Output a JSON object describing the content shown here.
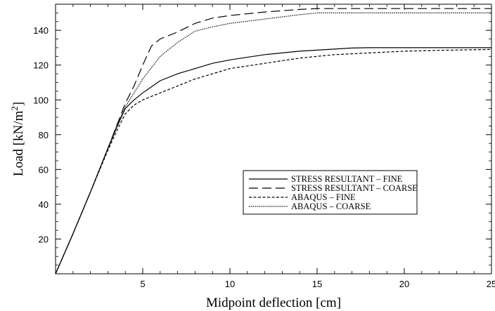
{
  "chart_data": {
    "type": "line",
    "xlabel": "Midpoint deflection [cm]",
    "ylabel_main": "Load [kN/m",
    "ylabel_sup": "2",
    "ylabel_end": "]",
    "xlim": [
      0,
      25
    ],
    "ylim": [
      0,
      155
    ],
    "xticks": [
      5,
      10,
      15,
      20,
      25
    ],
    "yticks": [
      20,
      40,
      60,
      80,
      100,
      120,
      140
    ],
    "grid": false,
    "legend_position": "center-right",
    "series": [
      {
        "name": "STRESS RESULTANT – FINE",
        "style": "solid",
        "x": [
          0,
          1,
          2,
          3,
          3.5,
          4,
          4.5,
          5,
          6,
          7,
          8,
          9,
          10,
          12,
          14,
          16,
          17,
          18,
          20,
          22,
          25
        ],
        "y": [
          0,
          23,
          47,
          72,
          84,
          95,
          100,
          104,
          111,
          115,
          118,
          121,
          123,
          126,
          128,
          129.2,
          129.8,
          130,
          130,
          130,
          130
        ]
      },
      {
        "name": "STRESS RESULTANT – COARSE",
        "style": "dashed",
        "x": [
          0,
          1,
          2,
          3,
          3.5,
          4,
          4.5,
          5,
          5.5,
          6,
          7,
          8,
          9,
          10,
          12,
          14,
          15,
          17,
          20,
          25
        ],
        "y": [
          0,
          23,
          47,
          72,
          85,
          98,
          108,
          120,
          131,
          135,
          139,
          144,
          147,
          148.5,
          150.5,
          152,
          152.5,
          152.5,
          152.5,
          152.5
        ]
      },
      {
        "name": "ABAQUS – FINE",
        "style": "short-dashed",
        "x": [
          0,
          1,
          2,
          3,
          3.5,
          4,
          4.5,
          5,
          6,
          7,
          8,
          9,
          10,
          12,
          14,
          16,
          18,
          20,
          22,
          25
        ],
        "y": [
          0,
          23,
          47,
          71,
          82,
          92,
          97,
          100,
          104,
          108,
          112,
          115,
          118,
          121,
          124,
          126,
          127,
          128,
          128.5,
          129
        ]
      },
      {
        "name": "ABAQUS – COARSE",
        "style": "dotted",
        "x": [
          0,
          1,
          2,
          3,
          3.5,
          4,
          4.5,
          5,
          6,
          7,
          8,
          9,
          10,
          12,
          14,
          15,
          17,
          20,
          25
        ],
        "y": [
          0,
          23,
          47,
          72,
          85,
          96,
          104,
          112,
          125,
          133,
          139.5,
          142,
          144,
          146.5,
          149,
          150,
          150,
          150,
          150
        ]
      }
    ]
  }
}
